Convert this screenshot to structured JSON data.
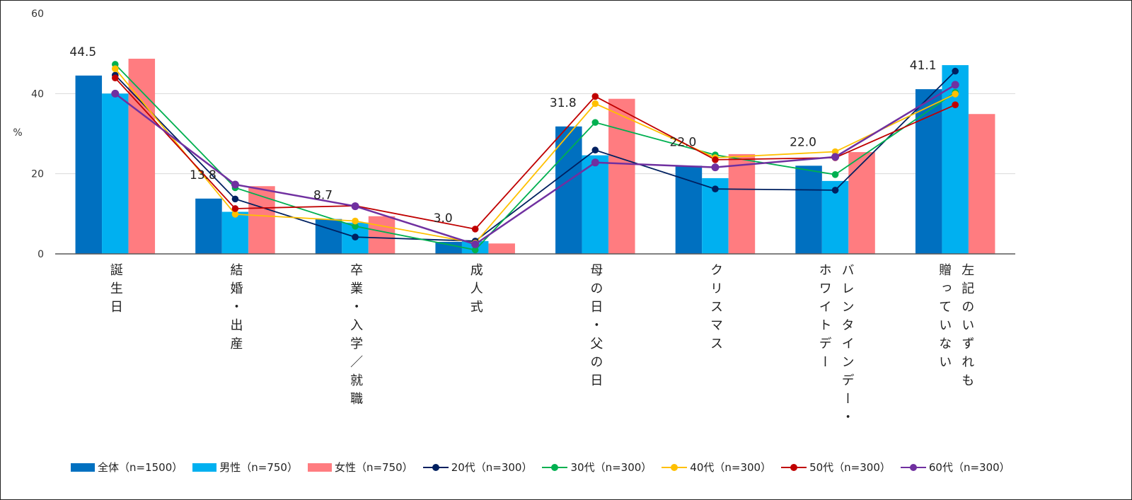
{
  "chart_data": {
    "type": "bar+line",
    "ylabel": "%",
    "ylim": [
      0,
      60
    ],
    "yticks": [
      0,
      20,
      40,
      60
    ],
    "grid": true,
    "legend_placement": "bottom",
    "categories": [
      "誕生日",
      "結婚・出産",
      "卒業・入学／就職",
      "成人式",
      "母の日・父の日",
      "クリスマス",
      "バレンタインデー・\nホワイトデー",
      "左記のいずれも\n贈っていない"
    ],
    "bar_series": [
      {
        "name": "全体（n=1500）",
        "color": "#0070C0",
        "values": [
          44.5,
          13.8,
          8.7,
          3.0,
          31.8,
          22.0,
          22.0,
          41.1
        ],
        "labels": [
          "44.5",
          "13.8",
          "8.7",
          "3.0",
          "31.8",
          "22.0",
          "22.0",
          "41.1"
        ]
      },
      {
        "name": "男性（n=750）",
        "color": "#00B0F0",
        "values": [
          40.0,
          10.5,
          7.8,
          3.2,
          24.6,
          18.9,
          18.2,
          47.1
        ]
      },
      {
        "name": "女性（n=750）",
        "color": "#FF7C80",
        "values": [
          48.7,
          16.9,
          9.4,
          2.6,
          38.7,
          24.9,
          25.4,
          34.9
        ]
      }
    ],
    "line_series": [
      {
        "name": "20代（n=300）",
        "color": "#002060",
        "values": [
          44.6,
          13.7,
          4.2,
          3.2,
          25.9,
          16.2,
          15.9,
          45.6
        ]
      },
      {
        "name": "30代（n=300）",
        "color": "#00B050",
        "values": [
          47.3,
          16.5,
          6.9,
          1.0,
          32.8,
          24.7,
          19.8,
          40.3
        ]
      },
      {
        "name": "40代（n=300）",
        "color": "#FFC000",
        "values": [
          46.2,
          9.9,
          8.2,
          2.7,
          37.5,
          24.0,
          25.5,
          39.9
        ]
      },
      {
        "name": "50代（n=300）",
        "color": "#C00000",
        "values": [
          43.9,
          11.3,
          12.0,
          6.2,
          39.3,
          23.5,
          24.0,
          37.2
        ]
      },
      {
        "name": "60代（n=300）",
        "color": "#7030A0",
        "values": [
          40.0,
          17.3,
          11.9,
          2.4,
          22.8,
          21.6,
          24.2,
          42.2
        ]
      }
    ]
  }
}
